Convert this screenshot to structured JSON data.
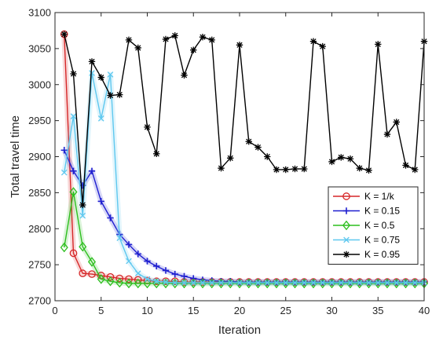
{
  "chart_data": {
    "type": "line",
    "xlabel": "Iteration",
    "ylabel": "Total travel time",
    "xlim": [
      0,
      40
    ],
    "ylim": [
      2700,
      3100
    ],
    "xticks": [
      0,
      5,
      10,
      15,
      20,
      25,
      30,
      35,
      40
    ],
    "yticks": [
      2700,
      2750,
      2800,
      2850,
      2900,
      2950,
      3000,
      3050,
      3100
    ],
    "legend_position": "lower-right",
    "grid": false,
    "series": [
      {
        "name": "K = 1/k",
        "color": "#d62728",
        "marker": "circle",
        "x": [
          1,
          2,
          3,
          4,
          5,
          6,
          7,
          8,
          9,
          10,
          11,
          12,
          13,
          14,
          15,
          16,
          17,
          18,
          19,
          20,
          21,
          22,
          23,
          24,
          25,
          26,
          27,
          28,
          29,
          30,
          31,
          32,
          33,
          34,
          35,
          36,
          37,
          38,
          39,
          40
        ],
        "values": [
          3070,
          2766,
          2738,
          2737,
          2735,
          2733,
          2731,
          2730,
          2729,
          2728,
          2727,
          2727,
          2727,
          2726,
          2726,
          2726,
          2726,
          2726,
          2726,
          2726,
          2726,
          2726,
          2726,
          2726,
          2726,
          2726,
          2726,
          2726,
          2726,
          2726,
          2726,
          2726,
          2726,
          2726,
          2726,
          2726,
          2726,
          2726,
          2726,
          2726
        ]
      },
      {
        "name": "K = 0.15",
        "color": "#1f1fd0",
        "marker": "plus",
        "x": [
          1,
          2,
          3,
          4,
          5,
          6,
          7,
          8,
          9,
          10,
          11,
          12,
          13,
          14,
          15,
          16,
          17,
          18,
          19,
          20,
          21,
          22,
          23,
          24,
          25,
          26,
          27,
          28,
          29,
          30,
          31,
          32,
          33,
          34,
          35,
          36,
          37,
          38,
          39,
          40
        ],
        "values": [
          2909,
          2880,
          2860,
          2880,
          2838,
          2815,
          2792,
          2778,
          2765,
          2755,
          2748,
          2742,
          2737,
          2734,
          2731,
          2729,
          2728,
          2727,
          2727,
          2726,
          2726,
          2726,
          2726,
          2726,
          2726,
          2726,
          2726,
          2726,
          2726,
          2726,
          2726,
          2726,
          2726,
          2726,
          2726,
          2726,
          2726,
          2726,
          2726,
          2726
        ]
      },
      {
        "name": "K = 0.5",
        "color": "#2dbf1f",
        "marker": "diamond",
        "x": [
          1,
          2,
          3,
          4,
          5,
          6,
          7,
          8,
          9,
          10,
          11,
          12,
          13,
          14,
          15,
          16,
          17,
          18,
          19,
          20,
          21,
          22,
          23,
          24,
          25,
          26,
          27,
          28,
          29,
          30,
          31,
          32,
          33,
          34,
          35,
          36,
          37,
          38,
          39,
          40
        ],
        "values": [
          2774,
          2851,
          2775,
          2754,
          2730,
          2727,
          2725,
          2724,
          2724,
          2724,
          2724,
          2724,
          2724,
          2724,
          2724,
          2724,
          2724,
          2724,
          2724,
          2724,
          2724,
          2724,
          2724,
          2724,
          2724,
          2724,
          2724,
          2724,
          2724,
          2724,
          2724,
          2724,
          2724,
          2724,
          2724,
          2724,
          2724,
          2724,
          2724,
          2724
        ]
      },
      {
        "name": "K = 0.75",
        "color": "#5fc8ef",
        "marker": "x",
        "x": [
          1,
          2,
          3,
          4,
          5,
          6,
          7,
          8,
          9,
          10,
          11,
          12,
          13,
          14,
          15,
          16,
          17,
          18,
          19,
          20,
          21,
          22,
          23,
          24,
          25,
          26,
          27,
          28,
          29,
          30,
          31,
          32,
          33,
          34,
          35,
          36,
          37,
          38,
          39,
          40
        ],
        "values": [
          2878,
          2956,
          2818,
          3016,
          2953,
          3014,
          2787,
          2755,
          2738,
          2730,
          2727,
          2726,
          2725,
          2725,
          2725,
          2725,
          2725,
          2725,
          2725,
          2725,
          2725,
          2725,
          2725,
          2725,
          2725,
          2725,
          2725,
          2725,
          2725,
          2725,
          2725,
          2725,
          2725,
          2725,
          2725,
          2725,
          2725,
          2725,
          2725,
          2725
        ]
      },
      {
        "name": "K = 0.95",
        "color": "#000000",
        "marker": "star",
        "x": [
          1,
          2,
          3,
          4,
          5,
          6,
          7,
          8,
          9,
          10,
          11,
          12,
          13,
          14,
          15,
          16,
          17,
          18,
          19,
          20,
          21,
          22,
          23,
          24,
          25,
          26,
          27,
          28,
          29,
          30,
          31,
          32,
          33,
          34,
          35,
          36,
          37,
          38,
          39,
          40
        ],
        "values": [
          3070,
          3015,
          2833,
          3032,
          3010,
          2985,
          2986,
          3062,
          3051,
          2941,
          2904,
          3063,
          3068,
          3013,
          3048,
          3066,
          3062,
          2884,
          2898,
          3055,
          2921,
          2913,
          2900,
          2882,
          2882,
          2883,
          2883,
          3060,
          3053,
          2893,
          2899,
          2897,
          2884,
          2881,
          3056,
          2931,
          2948,
          2888,
          2882,
          3060
        ]
      }
    ]
  }
}
